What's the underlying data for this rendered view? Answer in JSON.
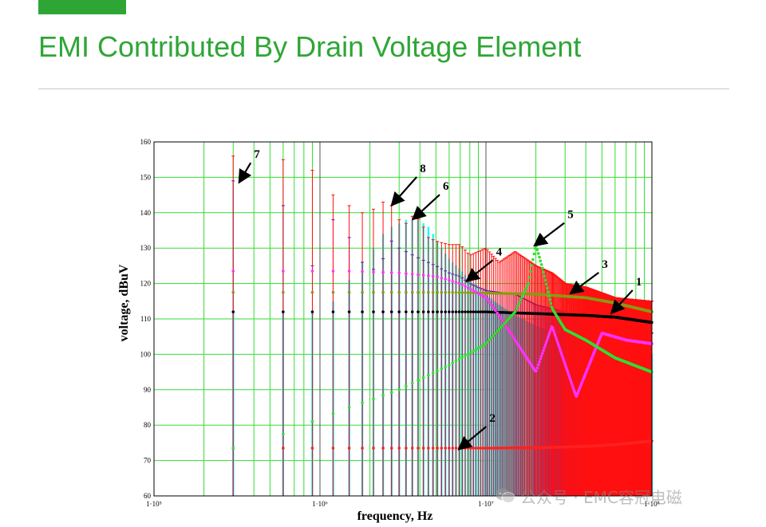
{
  "slide": {
    "title": "EMI Contributed By Drain Voltage Element",
    "accent_color": "#2ea636"
  },
  "watermark": {
    "text": "公众号 · EMC容冠电磁",
    "icon": "wechat-icon"
  },
  "chart_data": {
    "type": "scatter",
    "xlabel": "frequency, Hz",
    "ylabel": "voltage, dBuV",
    "xscale": "log",
    "xlim": [
      100000,
      100000000
    ],
    "ylim": [
      60,
      160
    ],
    "yticks": [
      60,
      70,
      80,
      90,
      100,
      110,
      120,
      130,
      140,
      150,
      160
    ],
    "xticks": [
      {
        "value": 100000,
        "label": "1·10⁵"
      },
      {
        "value": 1000000,
        "label": "1·10⁶"
      },
      {
        "value": 10000000,
        "label": "1·10⁷"
      },
      {
        "value": 100000000,
        "label": "1·10⁸"
      }
    ],
    "grid": true,
    "legend": "none",
    "harmonic_fundamental_hz": 300000,
    "series": [
      {
        "id": "1",
        "color": "#000000",
        "style": "dots",
        "x": [
          300000,
          600000,
          900000,
          1500000,
          3000000,
          6000000,
          10000000,
          20000000,
          40000000,
          60000000,
          100000000
        ],
        "y": [
          112,
          112,
          112,
          112,
          112,
          112,
          112,
          111.5,
          111,
          110.5,
          109
        ]
      },
      {
        "id": "2",
        "color": "#ff2020",
        "style": "dots",
        "x": [
          300000,
          600000,
          900000,
          1500000,
          3000000,
          6000000,
          10000000,
          20000000,
          40000000,
          60000000,
          100000000
        ],
        "y": [
          73.5,
          73.5,
          73.5,
          73.5,
          73.5,
          73.5,
          73.5,
          73.6,
          74,
          74.5,
          75.5
        ]
      },
      {
        "id": "3",
        "color": "#8a9a10",
        "style": "dots",
        "x": [
          300000,
          600000,
          900000,
          1500000,
          3000000,
          6000000,
          10000000,
          20000000,
          40000000,
          60000000,
          100000000
        ],
        "y": [
          117.5,
          117.5,
          117.5,
          117.5,
          117.5,
          117.5,
          117.3,
          117,
          116,
          114.5,
          112
        ]
      },
      {
        "id": "4",
        "color": "#ff33ff",
        "style": "dots",
        "x": [
          300000,
          600000,
          900000,
          1500000,
          3000000,
          5000000,
          7000000,
          10000000,
          12000000,
          15000000,
          20000000,
          25000000,
          35000000,
          50000000,
          70000000,
          100000000
        ],
        "y": [
          123.5,
          123.5,
          123.5,
          123.5,
          123,
          122,
          120,
          116,
          111,
          104,
          95,
          108,
          88,
          106,
          104,
          103
        ]
      },
      {
        "id": "5",
        "color": "#33dd33",
        "style": "dots",
        "x": [
          300000,
          600000,
          900000,
          1500000,
          3000000,
          6000000,
          10000000,
          15000000,
          18000000,
          20000000,
          22000000,
          25000000,
          30000000,
          40000000,
          60000000,
          100000000
        ],
        "y": [
          73.5,
          77.5,
          81,
          85,
          90,
          97,
          103,
          112,
          120,
          131,
          124,
          113,
          107,
          104,
          99,
          95
        ]
      },
      {
        "id": "6",
        "color": "#00ffff",
        "style": "stems",
        "x": [
          300000,
          600000,
          900000,
          1200000,
          1500000,
          1800000,
          2100000,
          2400000,
          2700000,
          3000000,
          3300000,
          3600000,
          3900000,
          4200000,
          4500000,
          4800000,
          5100000,
          5400000,
          6000000,
          7000000,
          8000000,
          9000000,
          10000000,
          12000000,
          15000000,
          20000000,
          30000000,
          50000000,
          100000000
        ],
        "y": [
          112,
          112,
          112,
          115,
          121,
          126,
          130,
          134,
          136,
          137,
          138,
          138,
          138,
          137,
          136,
          134,
          132,
          130,
          127,
          124,
          121,
          119,
          117,
          114,
          111,
          108,
          105,
          102,
          100
        ]
      },
      {
        "id": "7",
        "color": "#1515ee",
        "style": "stems",
        "x": [
          300000,
          600000,
          900000,
          1200000,
          1500000,
          1800000,
          2100000,
          2400000,
          2700000,
          3000000,
          4000000,
          5000000,
          6000000,
          7000000,
          8000000,
          10000000,
          15000000,
          20000000,
          30000000,
          50000000,
          100000000
        ],
        "y": [
          149,
          142,
          125,
          138,
          133,
          126,
          124,
          127,
          132,
          130,
          127,
          125,
          123,
          122,
          120,
          118,
          117,
          114,
          112,
          108,
          106
        ]
      },
      {
        "id": "8",
        "color": "#ff1010",
        "style": "stems",
        "x": [
          300000,
          600000,
          900000,
          1200000,
          1500000,
          1800000,
          2100000,
          2400000,
          2700000,
          3000000,
          3300000,
          3600000,
          4000000,
          4500000,
          5000000,
          6000000,
          7000000,
          8000000,
          10000000,
          12000000,
          15000000,
          20000000,
          25000000,
          30000000,
          40000000,
          60000000,
          100000000
        ],
        "y": [
          156,
          155,
          152,
          145,
          142,
          140,
          141,
          143,
          142,
          138,
          137,
          139,
          138,
          133,
          132,
          131,
          131,
          128,
          130,
          126,
          129,
          125,
          123,
          120,
          119,
          116,
          115
        ]
      }
    ],
    "annotations": [
      {
        "label": "7",
        "target_x": 330000,
        "target_y": 149,
        "text_x": 400000,
        "text_y": 155
      },
      {
        "label": "8",
        "target_x": 2750000,
        "target_y": 142.5,
        "text_x": 4000000,
        "text_y": 151
      },
      {
        "label": "6",
        "target_x": 3700000,
        "target_y": 138.5,
        "text_x": 5500000,
        "text_y": 146
      },
      {
        "label": "5",
        "target_x": 20000000,
        "target_y": 131,
        "text_x": 31000000,
        "text_y": 138
      },
      {
        "label": "4",
        "target_x": 7800000,
        "target_y": 121,
        "text_x": 11500000,
        "text_y": 127.5
      },
      {
        "label": "3",
        "target_x": 33000000,
        "target_y": 117.5,
        "text_x": 50000000,
        "text_y": 124
      },
      {
        "label": "1",
        "target_x": 58000000,
        "target_y": 112,
        "text_x": 80000000,
        "text_y": 119
      },
      {
        "label": "2",
        "target_x": 7000000,
        "target_y": 73.5,
        "text_x": 10500000,
        "text_y": 80.5
      }
    ]
  }
}
